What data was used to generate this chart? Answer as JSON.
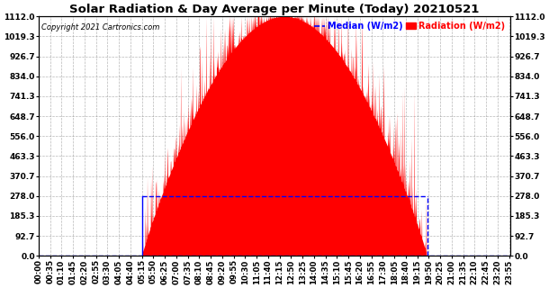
{
  "title": "Solar Radiation & Day Average per Minute (Today) 20210521",
  "copyright": "Copyright 2021 Cartronics.com",
  "legend_median": "Median (W/m2)",
  "legend_radiation": "Radiation (W/m2)",
  "ymin": 0.0,
  "ymax": 1112.0,
  "yticks": [
    0.0,
    92.7,
    185.3,
    278.0,
    370.7,
    463.3,
    556.0,
    648.7,
    741.3,
    834.0,
    926.7,
    1019.3,
    1112.0
  ],
  "total_minutes": 1440,
  "sunrise_minute": 315,
  "sunset_minute": 1185,
  "median_value": 278.0,
  "median_line_color": "#0000ff",
  "radiation_color": "#ff0000",
  "background_color": "#ffffff",
  "grid_color": "#888888",
  "title_fontsize": 9.5,
  "tick_fontsize": 6.5,
  "peak_minute": 760,
  "peak_value": 1112.0
}
